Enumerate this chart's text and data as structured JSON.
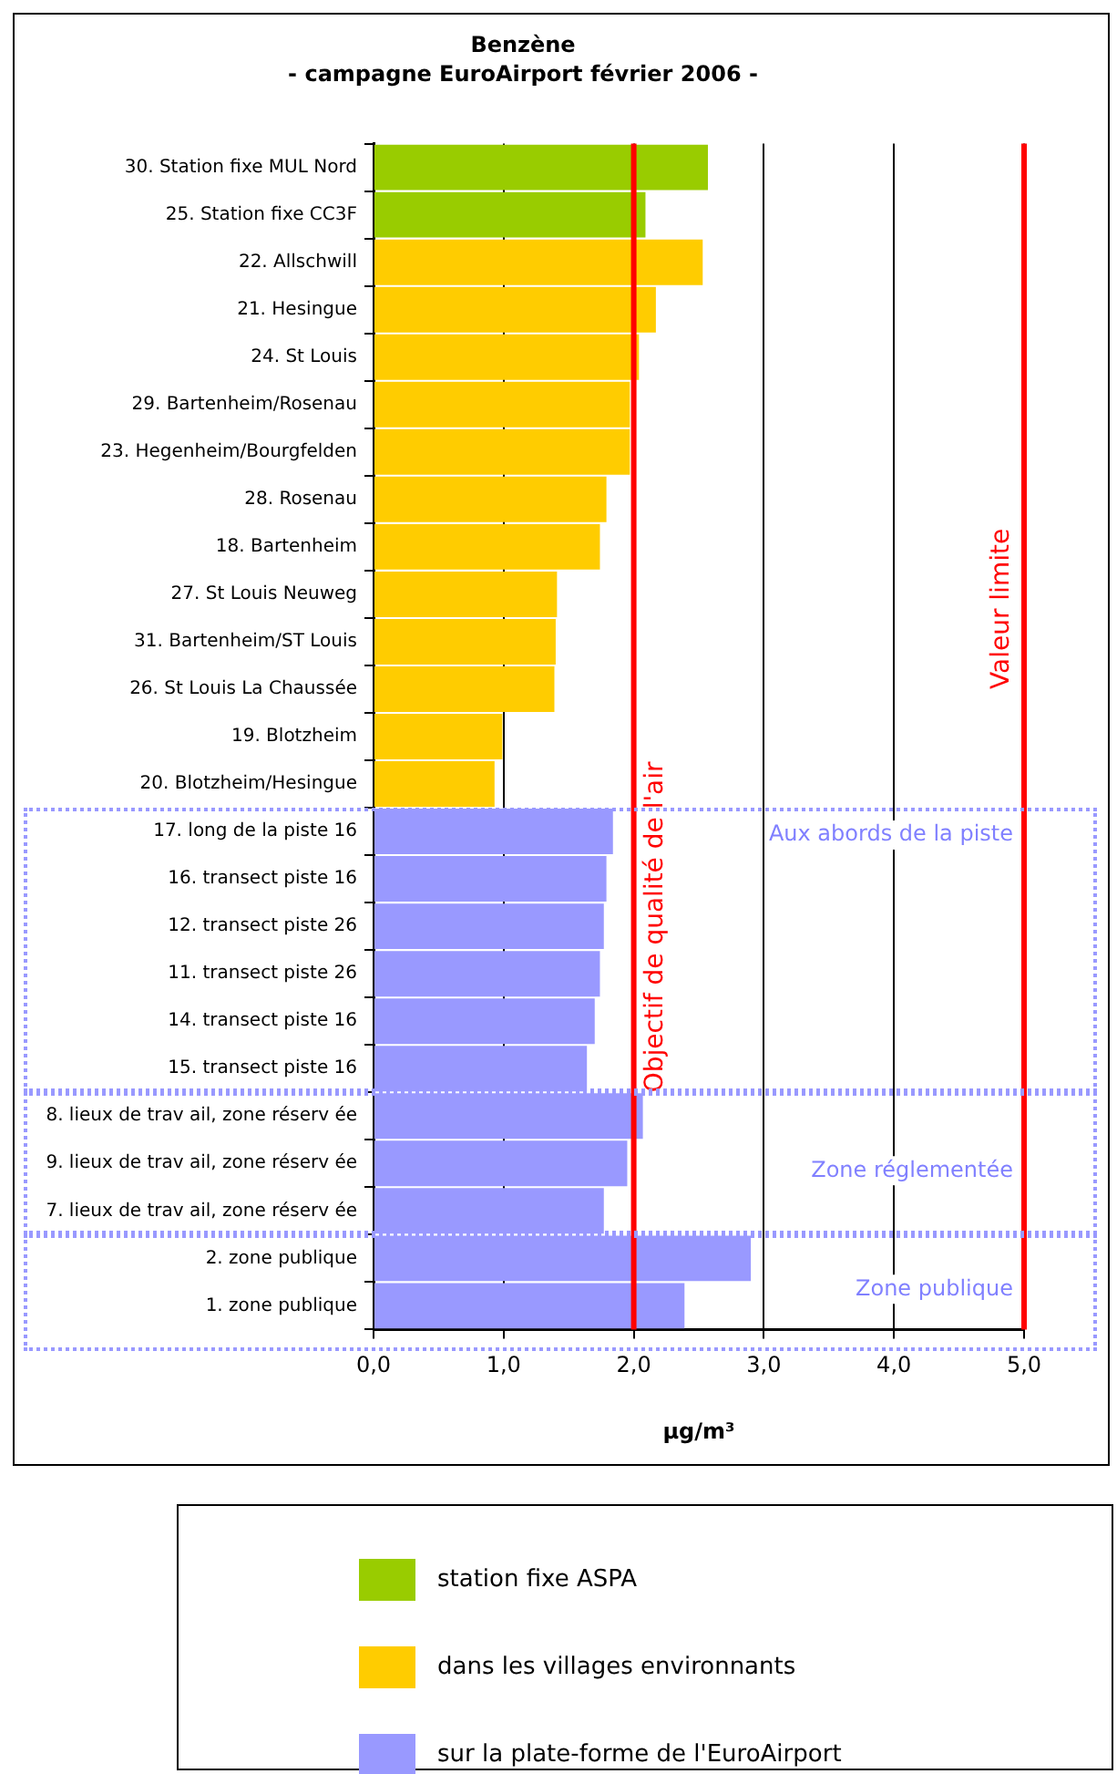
{
  "chart_data": {
    "type": "bar",
    "orientation": "horizontal",
    "stacked": true,
    "title": "Benzène",
    "subtitle": "- campagne EuroAirport février 2006 -",
    "xlabel": "µg/m³",
    "categories": [
      "30. Station fixe MUL Nord",
      "25. Station fixe CC3F",
      "22. Allschwill",
      "21. Hesingue",
      "24. St Louis",
      "29. Bartenheim/Rosenau",
      "23. Hegenheim/Bourgfelden",
      "28. Rosenau",
      "18. Bartenheim",
      "27. St Louis Neuweg",
      "31. Bartenheim/ST Louis",
      "26. St Louis La Chaussée",
      "19. Blotzheim",
      "20. Blotzheim/Hesingue",
      "17. long de la piste 16",
      "16. transect piste 16",
      "12. transect piste 26",
      "11. transect piste 26",
      "14. transect piste 16",
      "15. transect piste 16",
      "8. lieux de trav ail, zone réserv ée",
      "9. lieux de trav ail, zone réserv ée",
      "7. lieux de trav ail, zone réserv ée",
      "2. zone publique",
      "1. zone publique"
    ],
    "series": [
      {
        "name": "station fixe ASPA",
        "color": "#99cc00",
        "values": [
          2.57,
          2.09,
          null,
          null,
          null,
          null,
          null,
          null,
          null,
          null,
          null,
          null,
          null,
          null,
          null,
          null,
          null,
          null,
          null,
          null,
          null,
          null,
          null,
          null,
          null
        ]
      },
      {
        "name": "dans les villages environnants",
        "color": "#ffcc00",
        "values": [
          null,
          null,
          2.53,
          2.17,
          2.04,
          1.97,
          1.97,
          1.79,
          1.74,
          1.41,
          1.4,
          1.39,
          0.99,
          0.93,
          null,
          null,
          null,
          null,
          null,
          null,
          null,
          null,
          null,
          null,
          null
        ]
      },
      {
        "name": "sur la plate-forme de l'EuroAirport",
        "color": "#9999ff",
        "values": [
          null,
          null,
          null,
          null,
          null,
          null,
          null,
          null,
          null,
          null,
          null,
          null,
          null,
          null,
          1.84,
          1.79,
          1.77,
          1.74,
          1.7,
          1.64,
          2.07,
          1.95,
          1.77,
          2.9,
          2.39
        ]
      }
    ],
    "xlim": [
      0,
      5
    ],
    "xticks": [
      {
        "value": 0,
        "label": "0,0"
      },
      {
        "value": 1,
        "label": "1,0"
      },
      {
        "value": 2,
        "label": "2,0"
      },
      {
        "value": 3,
        "label": "3,0"
      },
      {
        "value": 4,
        "label": "4,0"
      },
      {
        "value": 5,
        "label": "5,0"
      }
    ],
    "grid": "x",
    "legend": "bottom",
    "ref_lines": [
      {
        "axis": "x",
        "value": 2,
        "label": "Objectif de qualité de l'air",
        "color": "#ff0000"
      },
      {
        "axis": "x",
        "value": 5,
        "label": "Valeur limite",
        "color": "#ff0000"
      }
    ],
    "annotations": [
      "Aux abords de la piste",
      "Zone réglementée",
      "Zone publique"
    ]
  }
}
